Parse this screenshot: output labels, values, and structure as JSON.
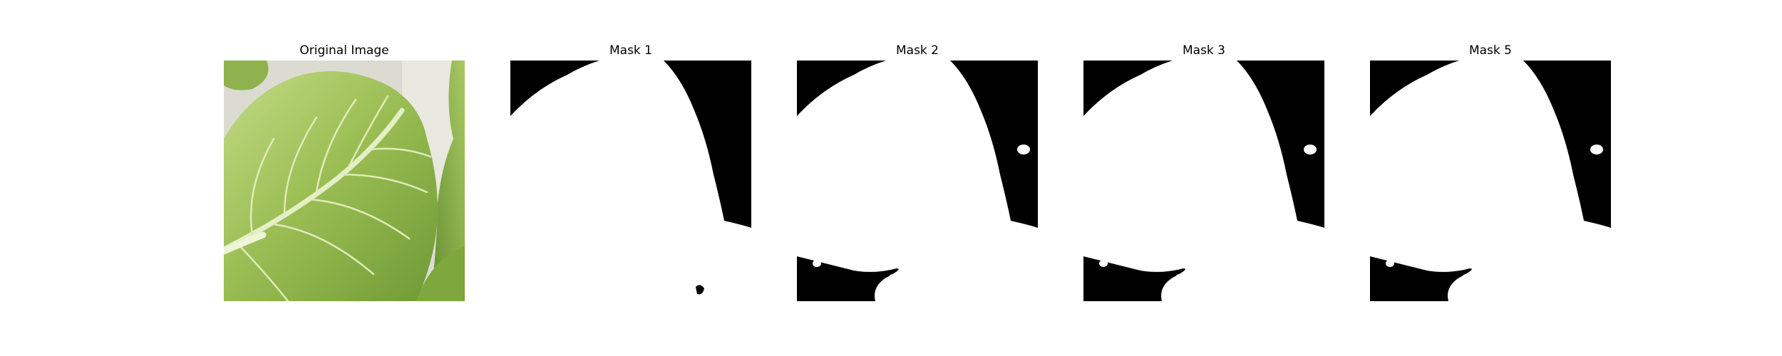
{
  "figure": {
    "panels": [
      {
        "title": "Original Image",
        "kind": "photo"
      },
      {
        "title": "Mask 1",
        "kind": "mask"
      },
      {
        "title": "Mask 2",
        "kind": "mask"
      },
      {
        "title": "Mask 3",
        "kind": "mask"
      },
      {
        "title": "Mask 5",
        "kind": "mask"
      }
    ]
  },
  "colors": {
    "background": "#ffffff",
    "mask_foreground": "#ffffff",
    "mask_background": "#000000",
    "leaf_light": "#b9d37a",
    "leaf_mid": "#8db04a",
    "leaf_dark": "#5e8a2c",
    "vein": "#e6f0c8",
    "backdrop": "#d9d8cf"
  }
}
